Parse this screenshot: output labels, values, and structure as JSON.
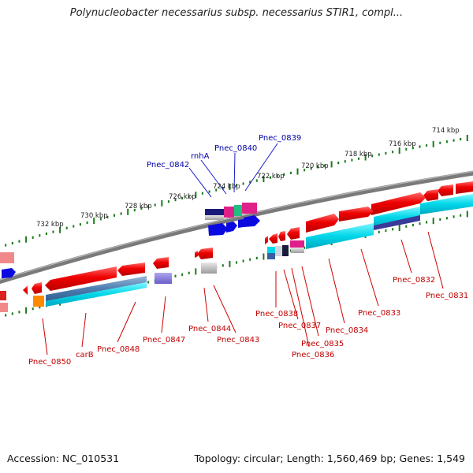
{
  "title": "Polynucleobacter necessarius subsp. necessarius STIR1, compl...",
  "footer": {
    "accession": "Accession: NC_010531",
    "stats": "Topology: circular; Length: 1,560,469 bp; Genes: 1,549"
  },
  "colors": {
    "backbone": "#777777",
    "tick": "#1a7a1a",
    "forward_gene": "#e00000",
    "reverse_gene": "#e00000",
    "cog_cyan": "#00d8e8",
    "cog_blue": "#1a1acc",
    "label_forward": "#c00000",
    "label_reverse": "#0000aa"
  },
  "scale": {
    "tick_labels": [
      "714 kbp",
      "716 kbp",
      "718 kbp",
      "720 kbp",
      "722 kbp",
      "724 kbp",
      "726 kbp",
      "728 kbp",
      "730 kbp",
      "732 kbp"
    ]
  },
  "gene_labels_reverse": [
    "Pnec_0842",
    "rnhA",
    "Pnec_0840",
    "Pnec_0839"
  ],
  "gene_labels_forward": [
    "Pnec_0832",
    "Pnec_0831",
    "Pnec_0833",
    "Pnec_0834",
    "Pnec_0835",
    "Pnec_0836",
    "Pnec_0837",
    "Pnec_0838",
    "Pnec_0844",
    "Pnec_0843",
    "Pnec_0847",
    "Pnec_0848",
    "carB",
    "Pnec_0850"
  ]
}
